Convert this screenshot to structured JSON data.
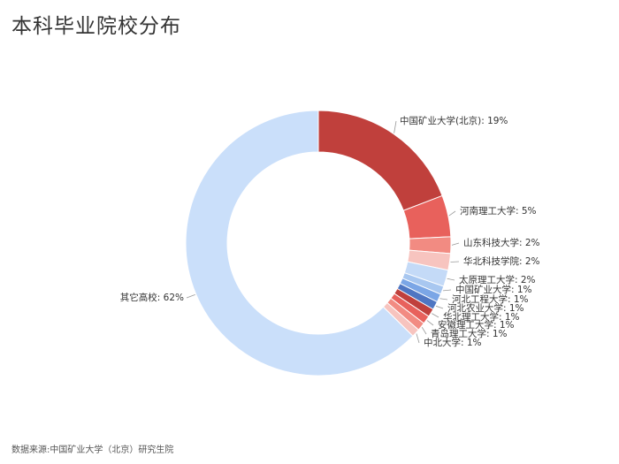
{
  "title": "本科毕业院校分布",
  "source": "数据来源:中国矿业大学（北京）研究生院",
  "chart_data": {
    "type": "pie",
    "variant": "donut",
    "title": "本科毕业院校分布",
    "unit": "%",
    "slices": [
      {
        "name": "中国矿业大学(北京)",
        "label": "中国矿业大学(北京): 19%",
        "value": 19,
        "color": "#c0403c"
      },
      {
        "name": "河南理工大学",
        "label": "河南理工大学: 5%",
        "value": 5,
        "color": "#e8615c"
      },
      {
        "name": "山东科技大学",
        "label": "山东科技大学: 2%",
        "value": 2,
        "color": "#f28b82"
      },
      {
        "name": "华北科技学院",
        "label": "华北科技学院: 2%",
        "value": 2,
        "color": "#f7c4bf"
      },
      {
        "name": "太原理工大学",
        "label": "太原理工大学: 2%",
        "value": 2,
        "color": "#c4daf7"
      },
      {
        "name": "中国矿业大学",
        "label": "中国矿业大学: 1%",
        "value": 1,
        "color": "#a8c7f0"
      },
      {
        "name": "河北工程大学",
        "label": "河北工程大学: 1%",
        "value": 1,
        "color": "#7ba6e6"
      },
      {
        "name": "河北农业大学",
        "label": "河北农业大学: 1%",
        "value": 1,
        "color": "#4f76c2"
      },
      {
        "name": "华北理工大学",
        "label": "华北理工大学: 1%",
        "value": 1,
        "color": "#c0403c"
      },
      {
        "name": "安徽理工大学",
        "label": "安徽理工大学: 1%",
        "value": 1,
        "color": "#e8615c"
      },
      {
        "name": "青岛理工大学",
        "label": "青岛理工大学: 1%",
        "value": 1,
        "color": "#f28b82"
      },
      {
        "name": "中北大学",
        "label": "中北大学: 1%",
        "value": 1,
        "color": "#f7c4bf"
      },
      {
        "name": "其它高校",
        "label": "其它高校: 62%",
        "value": 62,
        "color": "#cadffa"
      }
    ]
  }
}
